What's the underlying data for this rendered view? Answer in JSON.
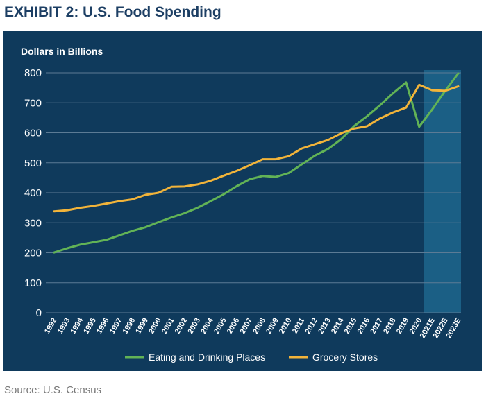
{
  "header": {
    "title": "EXHIBIT 2: U.S. Food Spending"
  },
  "footer": {
    "source": "Source: U.S. Census"
  },
  "colors": {
    "panel_bg": "#0f3a5c",
    "shade": "#1b5f85",
    "eating": "#62b356",
    "grocery": "#f2b43a",
    "text": "#ffffff",
    "title": "#1d3f64"
  },
  "chart_data": {
    "type": "line",
    "title": "EXHIBIT 2: U.S. Food Spending",
    "ylabel": "Dollars in Billions",
    "xlabel": "",
    "ylim": [
      0,
      800
    ],
    "yticks": [
      0,
      100,
      200,
      300,
      400,
      500,
      600,
      700,
      800
    ],
    "categories": [
      "1992",
      "1993",
      "1994",
      "1995",
      "1996",
      "1997",
      "1998",
      "1999",
      "2000",
      "2001",
      "2002",
      "2003",
      "2004",
      "2005",
      "2006",
      "2007",
      "2008",
      "2009",
      "2010",
      "2011",
      "2012",
      "2013",
      "2014",
      "2015",
      "2016",
      "2017",
      "2018",
      "2019",
      "2020",
      "2021E",
      "2022E",
      "2023E"
    ],
    "shaded_range": [
      "2020",
      "2023E"
    ],
    "series": [
      {
        "name": "Eating and Drinking Places",
        "color": "#62b356",
        "values": [
          201,
          215,
          227,
          235,
          243,
          258,
          273,
          285,
          302,
          318,
          332,
          350,
          372,
          395,
          422,
          445,
          456,
          453,
          466,
          495,
          524,
          546,
          578,
          622,
          655,
          692,
          732,
          768,
          620,
          678,
          740,
          798
        ]
      },
      {
        "name": "Grocery Stores",
        "color": "#f2b43a",
        "values": [
          338,
          342,
          350,
          356,
          364,
          372,
          378,
          393,
          400,
          420,
          421,
          428,
          440,
          457,
          473,
          492,
          512,
          512,
          522,
          548,
          562,
          576,
          598,
          614,
          622,
          648,
          668,
          684,
          760,
          742,
          740,
          755
        ]
      }
    ],
    "legend": [
      "Eating and Drinking Places",
      "Grocery Stores"
    ],
    "legend_position": "bottom",
    "grid": true
  }
}
